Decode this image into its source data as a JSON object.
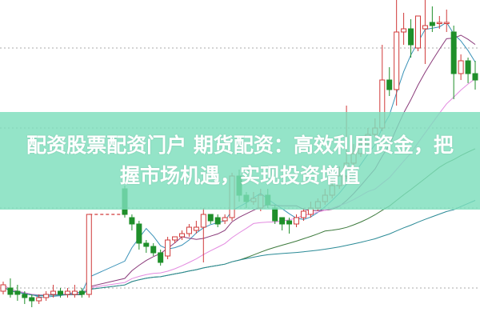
{
  "banner": {
    "line1": "配资股票配资门户 期货配资：高效利用资金，把",
    "line2": "握市场机遇，实现投资增值"
  },
  "chart_data": {
    "type": "candlestick",
    "grid": "dotted horizontal",
    "ylim": [
      0,
      100
    ],
    "up_color": "#d03a3a",
    "down_color": "#1f8f2a",
    "gridlines": [
      10,
      35,
      60,
      85
    ],
    "moving_averages": [
      {
        "period": 5,
        "color": "#3a92b8"
      },
      {
        "period": 10,
        "color": "#8a3a7a"
      },
      {
        "period": 20,
        "color": "#e38be0"
      },
      {
        "period": 30,
        "color": "#3d7a3d"
      },
      {
        "period": 60,
        "color": "#2a8a96"
      }
    ],
    "candles": [
      [
        9,
        11,
        12,
        8
      ],
      [
        10,
        8,
        13,
        7
      ],
      [
        9,
        8,
        11,
        6
      ],
      [
        8,
        7,
        9,
        5
      ],
      [
        7,
        6,
        8,
        4
      ],
      [
        6,
        7,
        8,
        5
      ],
      [
        7,
        8,
        9,
        6
      ],
      [
        8,
        9,
        11,
        7
      ],
      [
        9,
        8,
        10,
        7
      ],
      [
        8,
        9,
        10,
        7
      ],
      [
        8,
        9,
        11,
        7
      ],
      [
        9,
        8,
        10,
        7
      ],
      [
        8,
        33,
        33,
        7
      ],
      null,
      null,
      null,
      null,
      [
        41,
        33,
        42,
        32
      ],
      [
        32,
        30,
        33,
        28
      ],
      [
        30,
        24,
        31,
        22
      ],
      [
        24,
        23,
        25,
        21
      ],
      [
        23,
        21,
        24,
        20
      ],
      [
        21,
        18,
        22,
        17
      ],
      [
        20,
        25,
        26,
        19
      ],
      [
        25,
        26,
        26,
        24
      ],
      [
        26,
        27,
        28,
        25
      ],
      [
        27,
        29,
        30,
        26
      ],
      [
        28,
        29,
        31,
        27
      ],
      [
        29,
        33,
        35,
        18
      ],
      [
        33,
        31,
        33,
        30
      ],
      [
        32,
        30,
        33,
        29
      ],
      [
        31,
        32,
        33,
        30
      ],
      [
        32,
        45,
        46,
        31
      ],
      [
        45,
        39,
        47,
        37
      ],
      [
        39,
        37,
        40,
        35
      ],
      [
        37,
        38,
        40,
        36
      ],
      [
        35,
        39,
        41,
        34
      ],
      [
        39,
        36,
        41,
        35
      ],
      [
        35,
        31,
        36,
        30
      ],
      [
        32,
        30,
        32,
        28
      ],
      [
        31,
        30,
        32,
        27
      ],
      [
        30,
        32,
        33,
        29
      ],
      [
        32,
        34,
        35,
        31
      ],
      [
        33,
        35,
        37,
        32
      ],
      [
        35,
        37,
        38,
        34
      ],
      [
        37,
        39,
        41,
        36
      ],
      [
        39,
        42,
        44,
        38
      ],
      [
        42,
        45,
        48,
        41
      ],
      [
        45,
        49,
        67,
        44
      ],
      [
        49,
        52,
        55,
        48
      ],
      [
        52,
        55,
        57,
        51
      ],
      [
        55,
        58,
        60,
        54
      ],
      [
        58,
        60,
        63,
        57
      ],
      [
        60,
        75,
        86,
        59
      ],
      [
        75,
        72,
        79,
        70
      ],
      [
        72,
        90,
        100,
        67
      ],
      [
        90,
        91,
        96,
        86
      ],
      [
        91,
        86,
        94,
        82
      ],
      [
        85,
        95,
        95,
        84
      ],
      [
        91,
        92,
        100,
        80
      ],
      [
        93,
        92,
        98,
        90
      ],
      [
        93,
        93,
        95,
        91
      ],
      [
        93,
        93,
        97,
        90
      ],
      [
        90,
        77,
        92,
        69
      ],
      [
        77,
        81,
        83,
        75
      ],
      [
        81,
        77,
        82,
        74
      ],
      [
        77,
        75,
        81,
        72
      ]
    ]
  }
}
